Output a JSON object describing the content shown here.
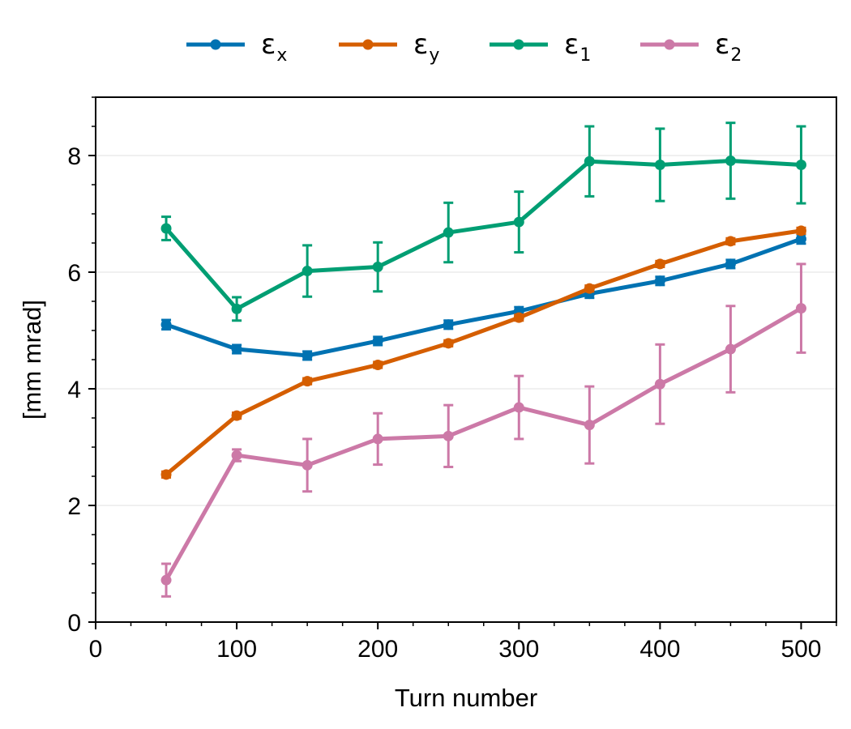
{
  "chart_data": {
    "type": "line",
    "title": "",
    "xlabel": "Turn number",
    "ylabel": "[mm mrad]",
    "xlim": [
      0,
      525
    ],
    "ylim": [
      0,
      9
    ],
    "x_ticks": [
      0,
      100,
      200,
      300,
      400,
      500
    ],
    "y_ticks": [
      0,
      2,
      4,
      6,
      8
    ],
    "grid": "horizontal",
    "legend_position": "top-center",
    "x": [
      50,
      100,
      150,
      200,
      250,
      300,
      350,
      400,
      450,
      500
    ],
    "series": [
      {
        "name": "ε",
        "subscript": "x",
        "color": "#0072b2",
        "values": [
          5.1,
          4.68,
          4.57,
          4.82,
          5.1,
          5.33,
          5.63,
          5.85,
          6.14,
          6.57
        ],
        "errors": [
          0.08,
          0.07,
          0.07,
          0.07,
          0.07,
          0.07,
          0.07,
          0.07,
          0.07,
          0.08
        ]
      },
      {
        "name": "ε",
        "subscript": "y",
        "color": "#d55e00",
        "values": [
          2.53,
          3.54,
          4.13,
          4.41,
          4.78,
          5.22,
          5.72,
          6.14,
          6.53,
          6.71
        ],
        "errors": [
          0.05,
          0.05,
          0.05,
          0.05,
          0.05,
          0.05,
          0.05,
          0.05,
          0.05,
          0.05
        ]
      },
      {
        "name": "ε",
        "subscript": "1",
        "color": "#009e73",
        "values": [
          6.75,
          5.37,
          6.02,
          6.09,
          6.68,
          6.86,
          7.9,
          7.84,
          7.91,
          7.84
        ],
        "errors": [
          0.2,
          0.2,
          0.44,
          0.42,
          0.51,
          0.52,
          0.6,
          0.62,
          0.65,
          0.66
        ]
      },
      {
        "name": "ε",
        "subscript": "2",
        "color": "#cc79a7",
        "values": [
          0.72,
          2.86,
          2.69,
          3.14,
          3.19,
          3.68,
          3.38,
          4.08,
          4.68,
          5.38
        ],
        "errors": [
          0.28,
          0.1,
          0.45,
          0.44,
          0.53,
          0.54,
          0.66,
          0.68,
          0.74,
          0.76
        ]
      }
    ]
  }
}
